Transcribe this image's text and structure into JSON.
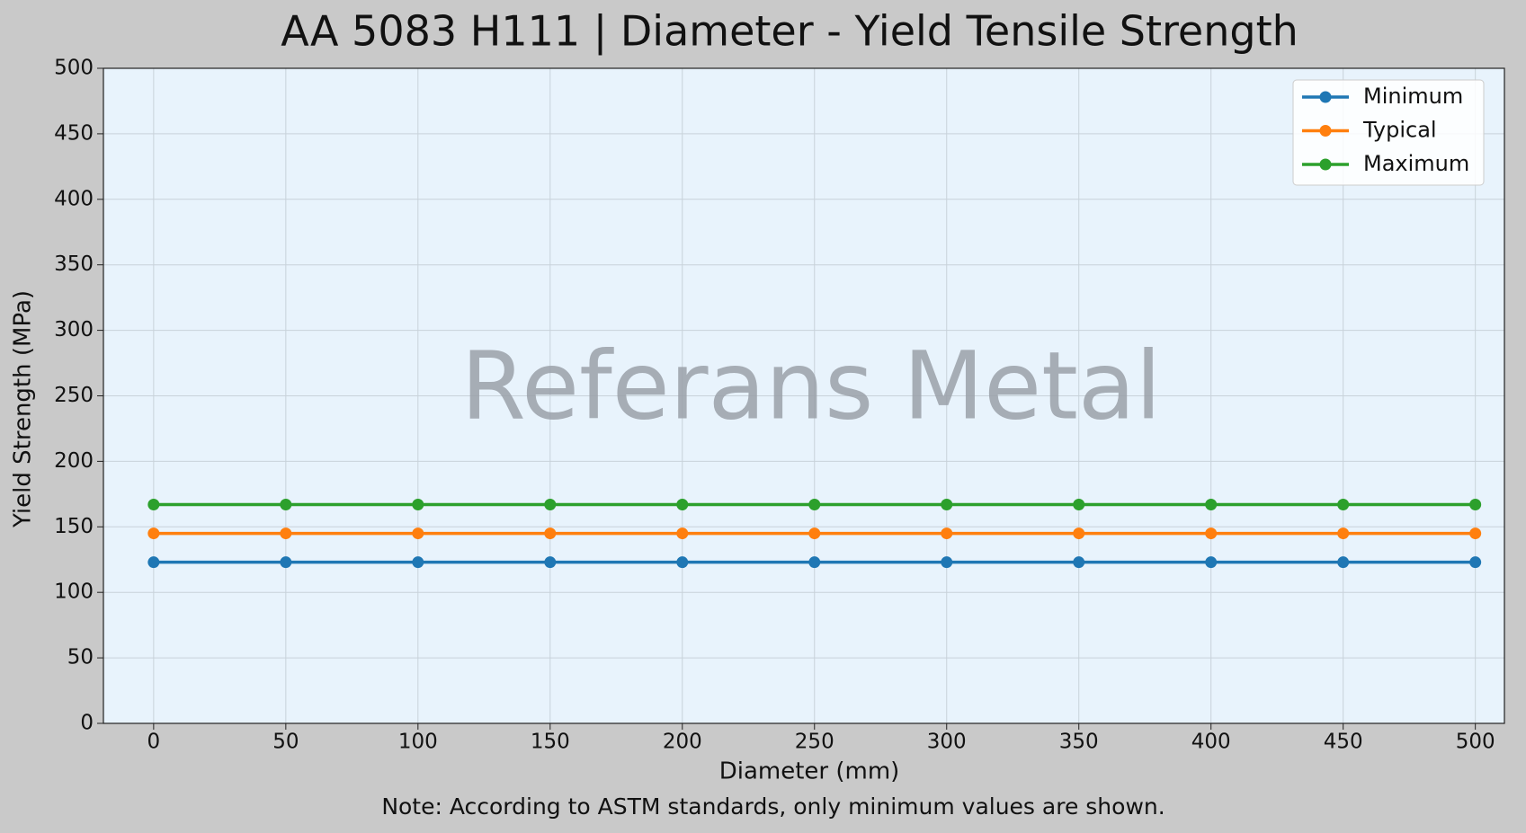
{
  "chart_data": {
    "type": "line",
    "title": "AA 5083 H111 | Diameter - Yield Tensile Strength",
    "x_label": "Diameter (mm)",
    "y_label": "Yield Strength (MPa)",
    "note": "Note: According to ASTM standards, only minimum values are shown.",
    "watermark": "Referans Metal",
    "x": [
      0,
      50,
      100,
      150,
      200,
      250,
      300,
      350,
      400,
      450,
      500
    ],
    "series": [
      {
        "name": "Minimum",
        "color": "#1f77b4",
        "values": [
          123,
          123,
          123,
          123,
          123,
          123,
          123,
          123,
          123,
          123,
          123
        ]
      },
      {
        "name": "Typical",
        "color": "#ff7f0e",
        "values": [
          145,
          145,
          145,
          145,
          145,
          145,
          145,
          145,
          145,
          145,
          145
        ]
      },
      {
        "name": "Maximum",
        "color": "#2ca02c",
        "values": [
          167,
          167,
          167,
          167,
          167,
          167,
          167,
          167,
          167,
          167,
          167
        ]
      }
    ],
    "xlim": [
      -19,
      511
    ],
    "ylim": [
      0,
      500
    ],
    "xticks": [
      0,
      50,
      100,
      150,
      200,
      250,
      300,
      350,
      400,
      450,
      500
    ],
    "yticks": [
      0,
      50,
      100,
      150,
      200,
      250,
      300,
      350,
      400,
      450,
      500
    ],
    "grid": true,
    "legend": "upper right"
  }
}
